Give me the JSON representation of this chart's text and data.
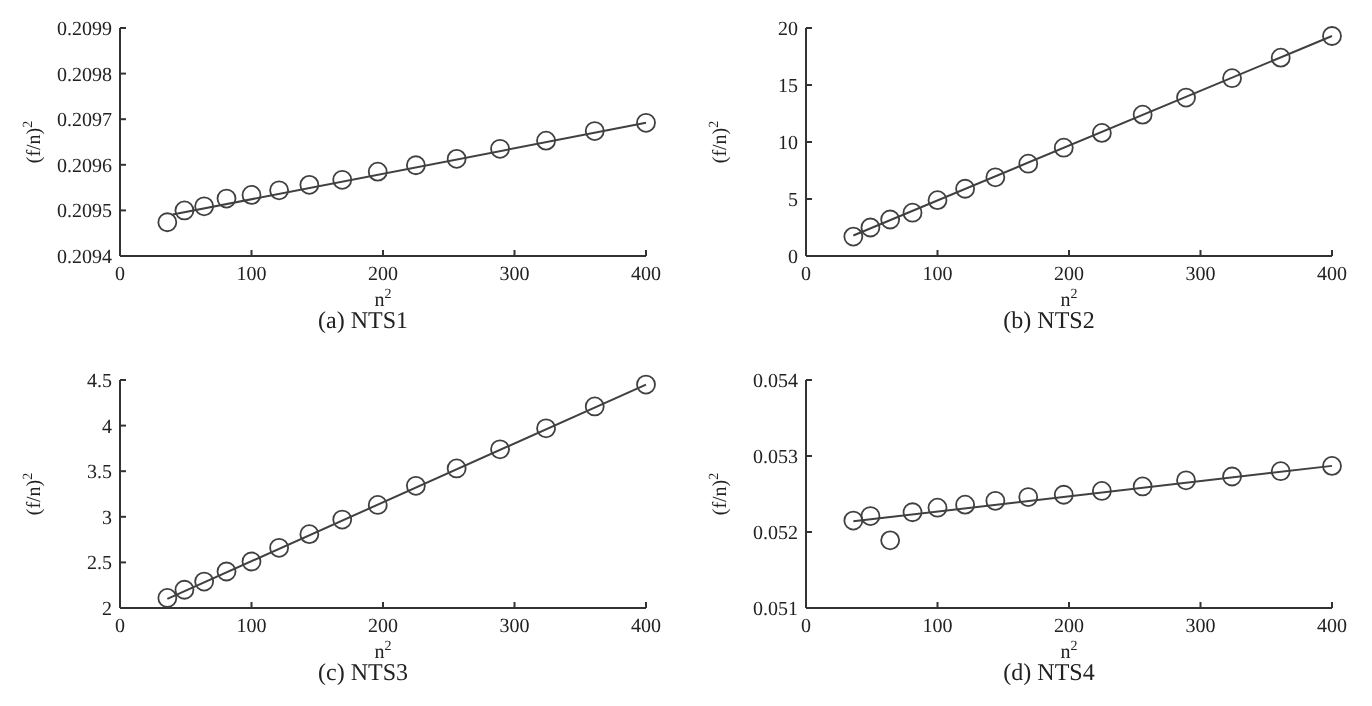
{
  "chart_data": [
    {
      "type": "scatter",
      "title": "(a)  NTS1",
      "xlabel": "n$^{2}$",
      "ylabel": "(f/n)$^{2}$",
      "xlim": [
        0,
        400
      ],
      "xticks": [
        0,
        100,
        200,
        300,
        400
      ],
      "ylim": [
        0.2094,
        0.2099
      ],
      "yticks": [
        0.2094,
        0.2095,
        0.2096,
        0.2097,
        0.2098,
        0.2099
      ],
      "grid": false,
      "series": [
        {
          "marker": "circle",
          "color": "#404040",
          "x": [
            36,
            49,
            64,
            81,
            100,
            121,
            144,
            169,
            196,
            225,
            256,
            289,
            324,
            361,
            400
          ],
          "values": [
            0.209474,
            0.2095,
            0.209509,
            0.209526,
            0.209534,
            0.209544,
            0.209556,
            0.209567,
            0.209585,
            0.209599,
            0.209613,
            0.209635,
            0.209653,
            0.209674,
            0.209692
          ]
        },
        {
          "type": "line",
          "marker": "none",
          "line_style": "solid",
          "color": "#404040",
          "x": [
            40,
            400
          ],
          "values": [
            0.209491,
            0.209692
          ]
        }
      ]
    },
    {
      "type": "scatter",
      "title": "(b)  NTS2",
      "xlabel": "n$^{2}$",
      "ylabel": "(f/n)$^{2}$",
      "xlim": [
        0,
        400
      ],
      "xticks": [
        0,
        100,
        200,
        300,
        400
      ],
      "ylim": [
        0,
        20
      ],
      "yticks": [
        0,
        5,
        10,
        15,
        20
      ],
      "grid": false,
      "series": [
        {
          "marker": "circle",
          "color": "#404040",
          "x": [
            36,
            49,
            64,
            81,
            100,
            121,
            144,
            169,
            196,
            225,
            256,
            289,
            324,
            361,
            400
          ],
          "values": [
            1.7,
            2.5,
            3.2,
            3.8,
            4.9,
            5.9,
            6.9,
            8.1,
            9.5,
            10.8,
            12.4,
            13.9,
            15.6,
            17.4,
            19.3
          ]
        },
        {
          "type": "line",
          "marker": "none",
          "line_style": "solid",
          "color": "#404040",
          "x": [
            36,
            400
          ],
          "values": [
            1.8,
            19.3
          ]
        }
      ]
    },
    {
      "type": "scatter",
      "title": "(c)  NTS3",
      "xlabel": "n$^{2}$",
      "ylabel": "(f/n)$^{2}$",
      "xlim": [
        0,
        400
      ],
      "xticks": [
        0,
        100,
        200,
        300,
        400
      ],
      "ylim": [
        2,
        4.5
      ],
      "yticks": [
        2,
        2.5,
        3,
        3.5,
        4,
        4.5
      ],
      "grid": false,
      "series": [
        {
          "marker": "circle",
          "color": "#404040",
          "x": [
            36,
            49,
            64,
            81,
            100,
            121,
            144,
            169,
            196,
            225,
            256,
            289,
            324,
            361,
            400
          ],
          "values": [
            2.11,
            2.2,
            2.29,
            2.4,
            2.51,
            2.66,
            2.81,
            2.97,
            3.13,
            3.34,
            3.53,
            3.74,
            3.97,
            4.21,
            4.45
          ]
        },
        {
          "type": "line",
          "marker": "none",
          "line_style": "solid",
          "color": "#404040",
          "x": [
            36,
            400
          ],
          "values": [
            2.1,
            4.45
          ]
        }
      ]
    },
    {
      "type": "scatter",
      "title": "(d)  NTS4",
      "xlabel": "n$^{2}$",
      "ylabel": "(f/n)$^{2}$",
      "xlim": [
        0,
        400
      ],
      "xticks": [
        0,
        100,
        200,
        300,
        400
      ],
      "ylim": [
        0.051,
        0.054
      ],
      "yticks": [
        0.051,
        0.052,
        0.053,
        0.054
      ],
      "grid": false,
      "series": [
        {
          "marker": "circle",
          "color": "#404040",
          "x": [
            36,
            49,
            64,
            81,
            100,
            121,
            144,
            169,
            196,
            225,
            256,
            289,
            324,
            361,
            400
          ],
          "values": [
            0.05215,
            0.05221,
            0.05189,
            0.05226,
            0.05232,
            0.05236,
            0.05241,
            0.05246,
            0.05249,
            0.05254,
            0.0526,
            0.05268,
            0.05273,
            0.0528,
            0.05287
          ]
        },
        {
          "type": "line",
          "marker": "none",
          "line_style": "solid",
          "color": "#404040",
          "x": [
            36,
            400
          ],
          "values": [
            0.05214,
            0.05287
          ]
        }
      ]
    }
  ]
}
